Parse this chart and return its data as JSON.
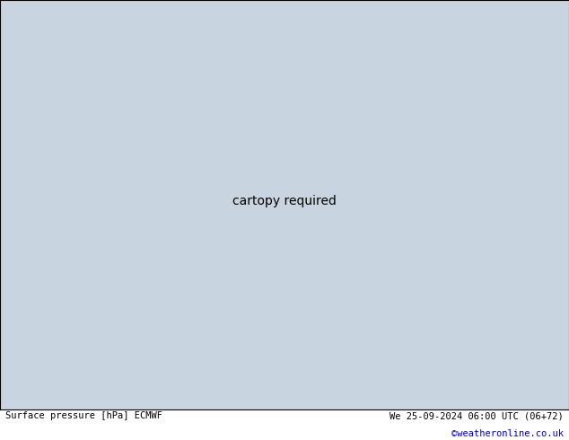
{
  "title_left": "Surface pressure [hPa] ECMWF",
  "title_right": "We 25-09-2024 06:00 UTC (06+72)",
  "watermark": "©weatheronline.co.uk",
  "bg_color": "#c8d4e0",
  "land_color": "#b8ddb0",
  "ocean_color": "#c8d4e0",
  "figsize": [
    6.34,
    4.9
  ],
  "dpi": 100,
  "bottom_text_color_left": "#000000",
  "bottom_text_color_right": "#000000",
  "watermark_color": "#0000cc",
  "contour_red_color": "#cc0000",
  "contour_black_color": "#000000",
  "contour_blue_color": "#0055bb",
  "extent": [
    -30,
    75,
    -55,
    38
  ],
  "lon_grid": 300,
  "lat_grid": 250
}
